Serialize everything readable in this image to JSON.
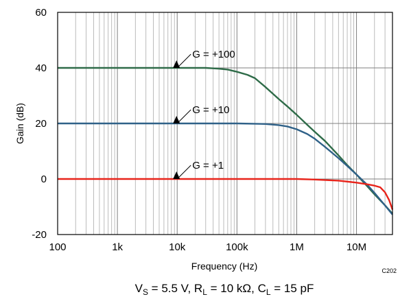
{
  "chart_data": {
    "type": "line",
    "xlabel": "Frequency (Hz)",
    "ylabel": "Gain (dB)",
    "x_scale": "log",
    "xlim": [
      100,
      40000000
    ],
    "ylim": [
      -20,
      60
    ],
    "grid": true,
    "x_ticks": [
      {
        "value": 100,
        "label": "100"
      },
      {
        "value": 1000,
        "label": "1k"
      },
      {
        "value": 10000,
        "label": "10k"
      },
      {
        "value": 100000,
        "label": "100k"
      },
      {
        "value": 1000000,
        "label": "1M"
      },
      {
        "value": 10000000,
        "label": "10M"
      }
    ],
    "y_ticks": [
      {
        "value": 60,
        "label": "60"
      },
      {
        "value": 40,
        "label": "40"
      },
      {
        "value": 20,
        "label": "20"
      },
      {
        "value": 0,
        "label": "0"
      },
      {
        "value": -20,
        "label": "-20"
      }
    ],
    "series": [
      {
        "name": "G = +100",
        "color": "#2e6b48",
        "points": [
          [
            100,
            40
          ],
          [
            1000,
            40
          ],
          [
            10000,
            40
          ],
          [
            30000,
            40
          ],
          [
            50000,
            39.7
          ],
          [
            70000,
            39.4
          ],
          [
            100000,
            38.6
          ],
          [
            150000,
            37.5
          ],
          [
            200000,
            36.3
          ],
          [
            300000,
            33.1
          ],
          [
            500000,
            28.8
          ],
          [
            700000,
            26.1
          ],
          [
            1000000,
            23.1
          ],
          [
            1500000,
            19.5
          ],
          [
            2000000,
            17.0
          ],
          [
            3000000,
            13.6
          ],
          [
            5000000,
            8.5
          ],
          [
            7000000,
            5.0
          ],
          [
            10000000,
            1.6
          ],
          [
            15000000,
            -2.5
          ],
          [
            20000000,
            -5.5
          ],
          [
            30000000,
            -9.5
          ],
          [
            40000000,
            -12.5
          ]
        ]
      },
      {
        "name": "G = +10",
        "color": "#2f6188",
        "points": [
          [
            100,
            20
          ],
          [
            1000,
            20
          ],
          [
            10000,
            20
          ],
          [
            100000,
            20
          ],
          [
            300000,
            19.8
          ],
          [
            500000,
            19.4
          ],
          [
            700000,
            18.9
          ],
          [
            1000000,
            17.9
          ],
          [
            1500000,
            16.2
          ],
          [
            2000000,
            14.5
          ],
          [
            3000000,
            11.5
          ],
          [
            5000000,
            7.5
          ],
          [
            7000000,
            4.7
          ],
          [
            10000000,
            1.6
          ],
          [
            15000000,
            -2.0
          ],
          [
            20000000,
            -5.0
          ],
          [
            30000000,
            -9.5
          ],
          [
            40000000,
            -12.8
          ]
        ]
      },
      {
        "name": "G = +1",
        "color": "#e8231a",
        "points": [
          [
            100,
            0
          ],
          [
            10000,
            0
          ],
          [
            100000,
            0
          ],
          [
            1000000,
            0
          ],
          [
            2000000,
            -0.2
          ],
          [
            5000000,
            -0.6
          ],
          [
            10000000,
            -1.3
          ],
          [
            15000000,
            -1.9
          ],
          [
            20000000,
            -2.4
          ],
          [
            25000000,
            -3.0
          ],
          [
            30000000,
            -4.8
          ],
          [
            35000000,
            -7.5
          ],
          [
            40000000,
            -11.0
          ]
        ]
      }
    ],
    "annotations": [
      {
        "text": "G = +100",
        "arrow_to": [
          10000,
          40
        ]
      },
      {
        "text": "G = +10",
        "arrow_to": [
          10000,
          20
        ]
      },
      {
        "text": "G = +1",
        "arrow_to": [
          10000,
          0
        ]
      }
    ],
    "figure_code": "C202"
  },
  "caption": {
    "vs_main": "V",
    "vs_sub": "S",
    "vs_val": " = 5.5 V, ",
    "rl_main": "R",
    "rl_sub": "L",
    "rl_val": " = 10 kΩ, ",
    "cl_main": "C",
    "cl_sub": "L",
    "cl_val": " = 15 pF"
  }
}
